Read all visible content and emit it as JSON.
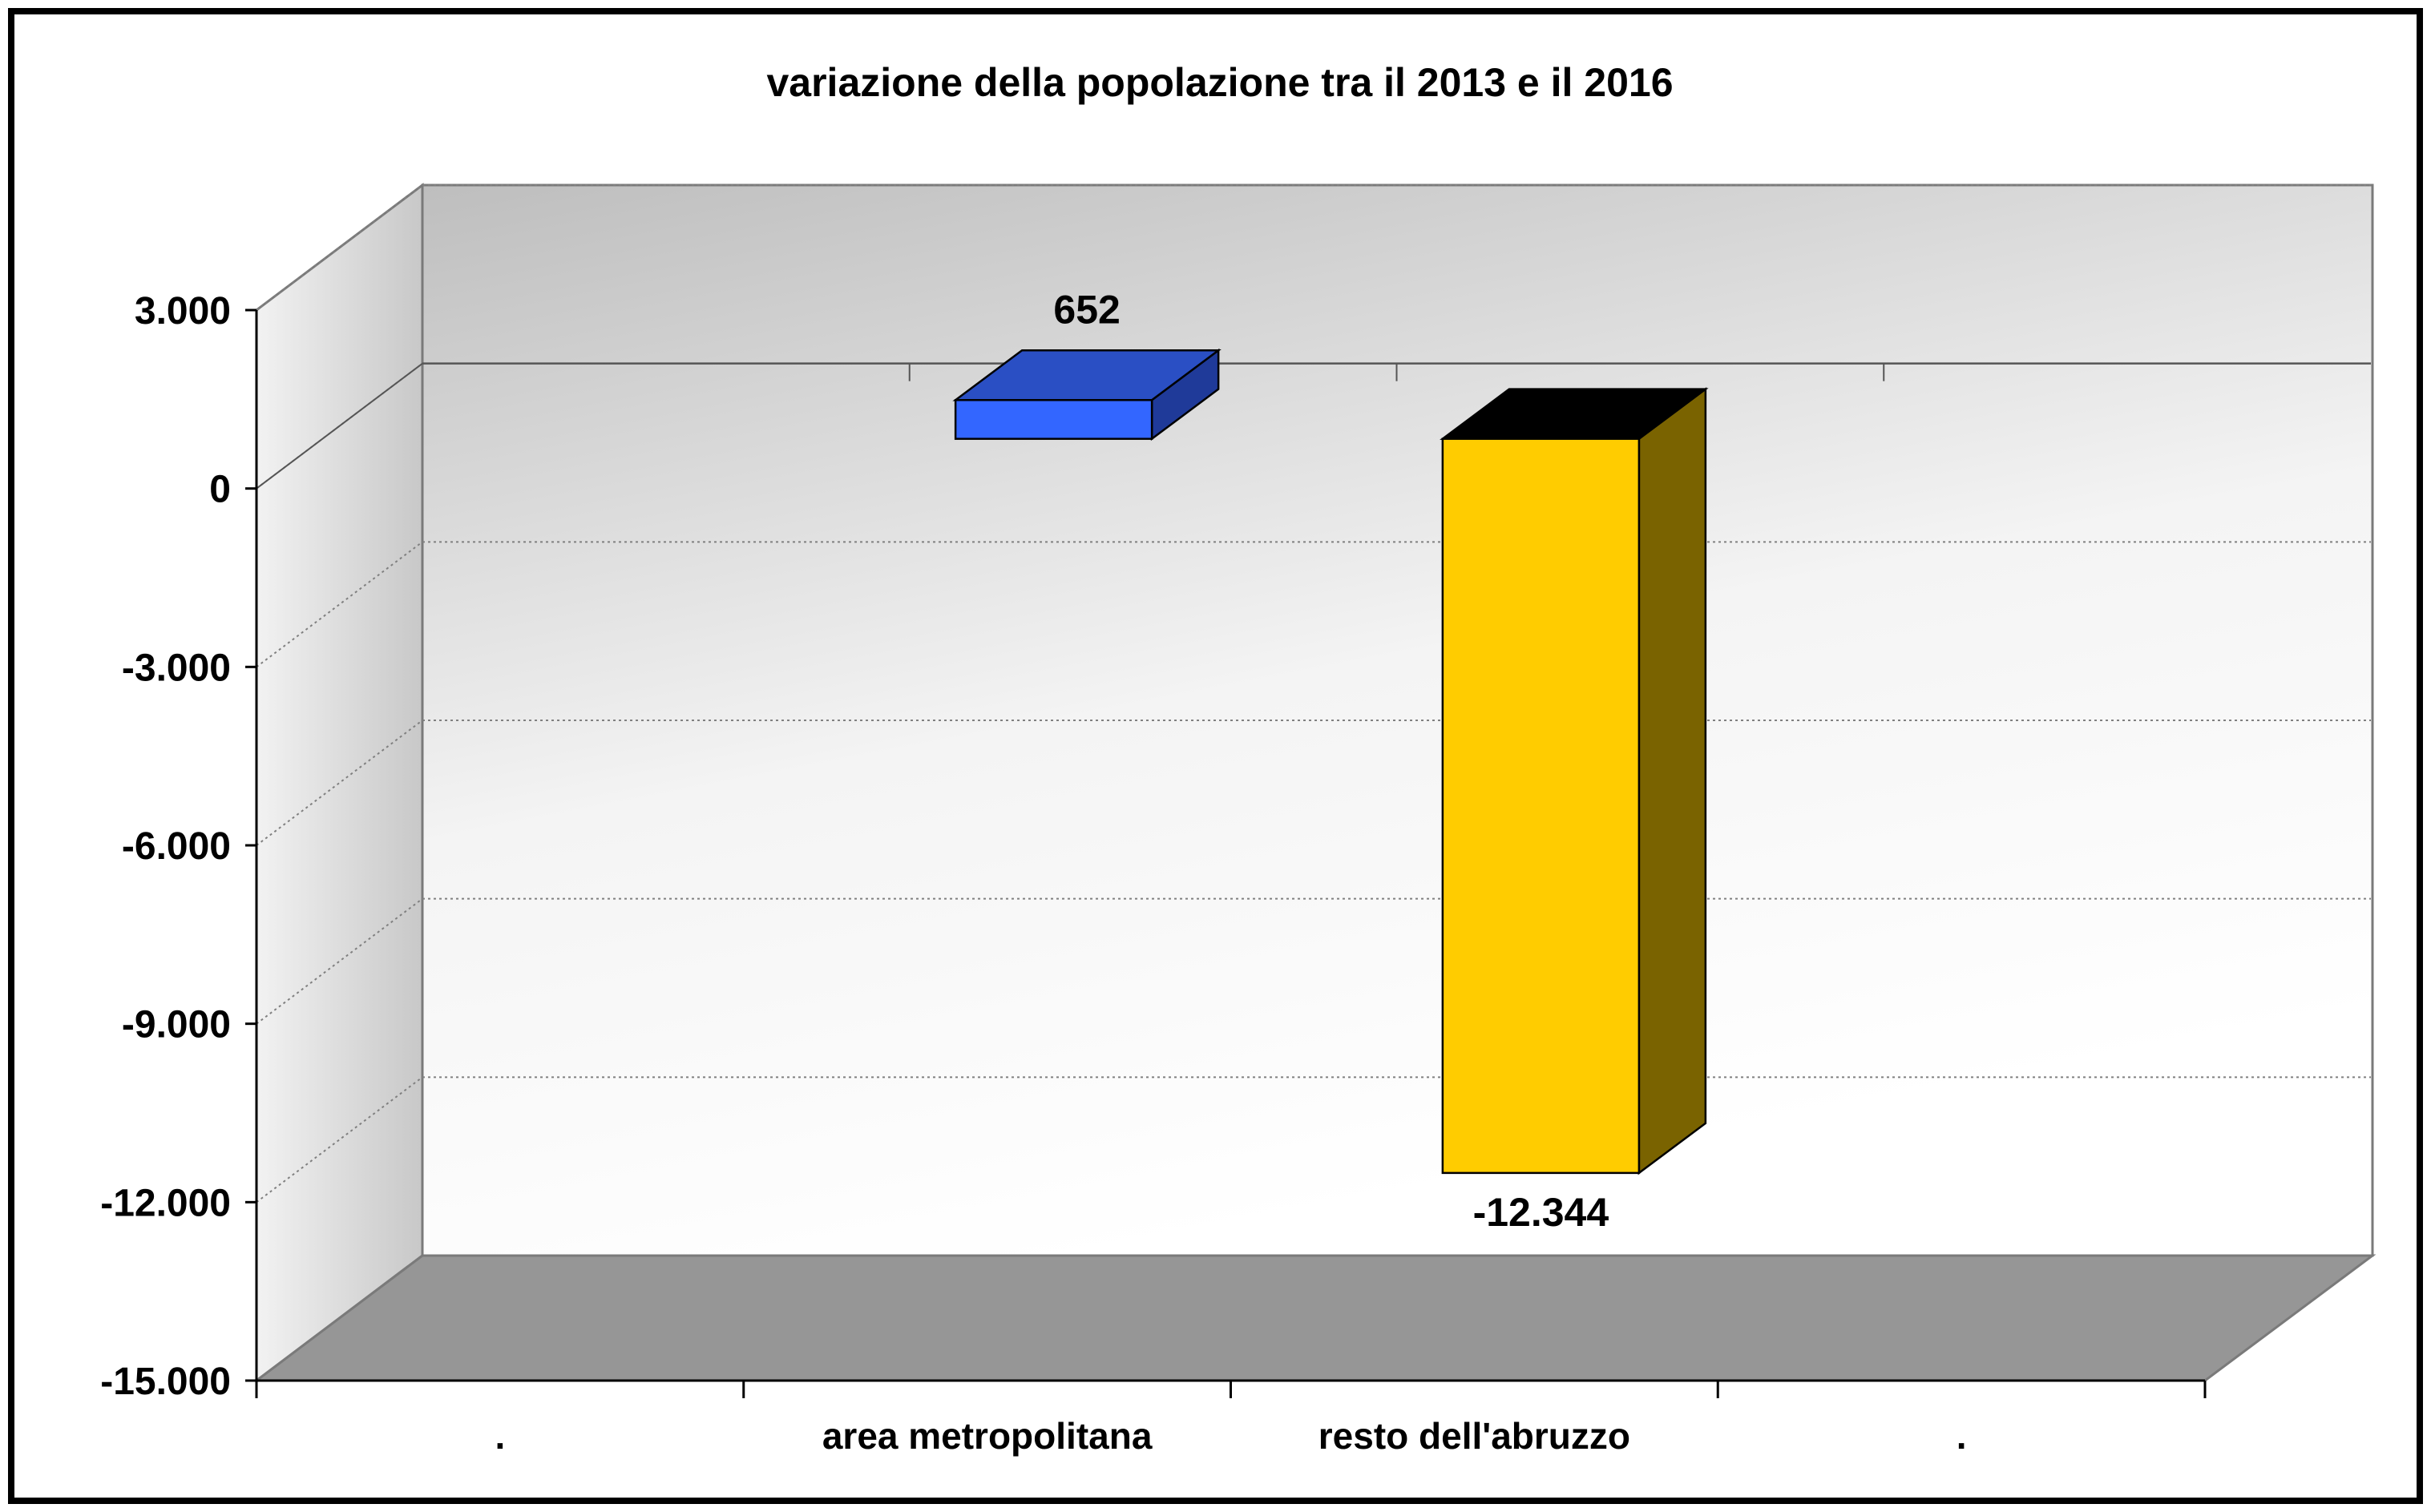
{
  "chart_data": {
    "type": "bar",
    "title": "variazione della popolazione tra il 2013 e il 2016",
    "xlabel": "",
    "ylabel": "",
    "categories": [
      ".",
      "area metropolitana",
      "resto dell'abruzzo",
      "."
    ],
    "series": [
      {
        "values": [
          null,
          652,
          -12344,
          null
        ]
      }
    ],
    "value_labels": [
      "",
      "652",
      "-12.344",
      ""
    ],
    "ylim": [
      -15000,
      3000
    ],
    "y_ticks": [
      3000,
      0,
      -3000,
      -6000,
      -9000,
      -12000,
      -15000
    ],
    "y_tick_labels": [
      "3.000",
      "0",
      "-3.000",
      "-6.000",
      "-9.000",
      "-12.000",
      "-15.000"
    ],
    "grid": true,
    "legend": "none",
    "three_d": true
  },
  "colors": {
    "area_metropolitana_front": "#3366ff",
    "area_metropolitana_top": "#2a4fc4",
    "area_metropolitana_side": "#1f3a99",
    "resto_front": "#ffcc00",
    "resto_top": "#000000",
    "resto_side": "#7a6300",
    "floor": "#969696",
    "back_wall_top": "#c4c4c4",
    "back_wall_bottom": "#fbfbfb",
    "side_wall": "#d9d9d9",
    "frame": "#000000"
  }
}
